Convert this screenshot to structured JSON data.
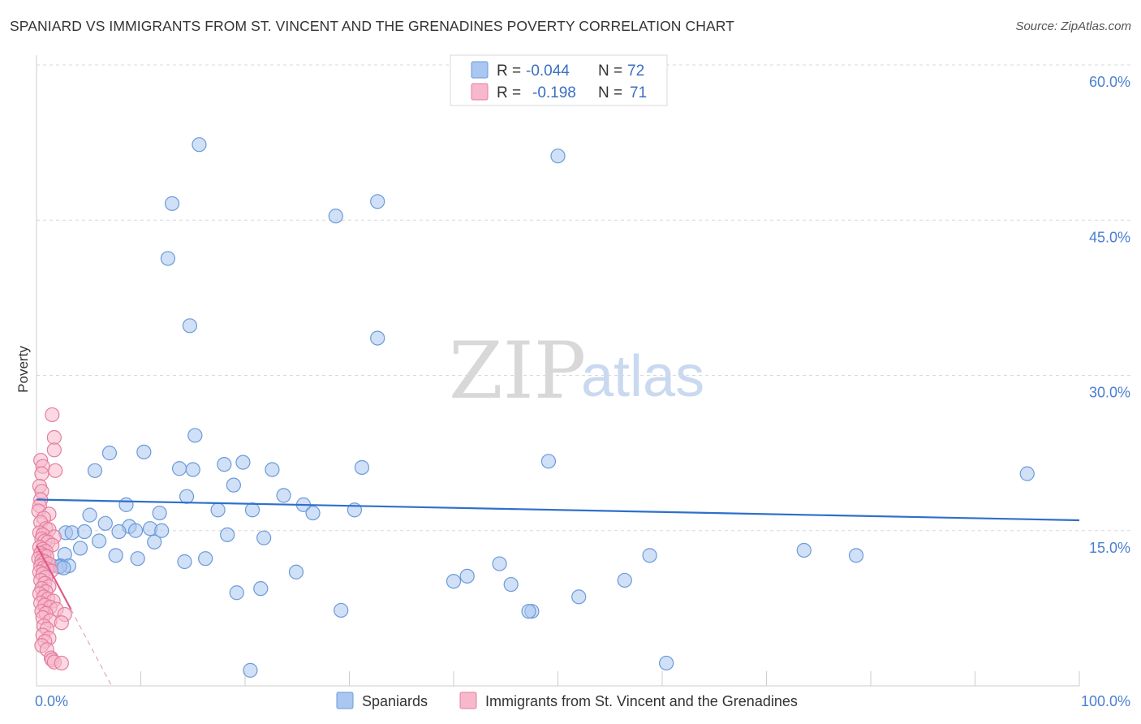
{
  "header": {
    "title": "SPANIARD VS IMMIGRANTS FROM ST. VINCENT AND THE GRENADINES POVERTY CORRELATION CHART",
    "source": "Source: ZipAtlas.com"
  },
  "watermark": {
    "zip": "ZIP",
    "atlas": "atlas"
  },
  "legend": {
    "rows": [
      {
        "r_label": "R =",
        "r_value": "-0.044",
        "n_label": "N =",
        "n_value": "72",
        "color": "#a9c7f0",
        "stroke": "#6c9ad8"
      },
      {
        "r_label": "R =",
        "r_value": "-0.198",
        "n_label": "N =",
        "n_value": "71",
        "color": "#f7b8cb",
        "stroke": "#e47ea0"
      }
    ]
  },
  "bottom_legend": {
    "items": [
      {
        "label": "Spaniards",
        "color": "#a9c7f0",
        "stroke": "#6c9ad8"
      },
      {
        "label": "Immigrants from St. Vincent and the Grenadines",
        "color": "#f7b8cb",
        "stroke": "#e47ea0"
      }
    ]
  },
  "chart_data": {
    "type": "scatter",
    "title": "SPANIARD VS IMMIGRANTS FROM ST. VINCENT AND THE GRENADINES POVERTY CORRELATION CHART",
    "xlabel": "",
    "ylabel": "Poverty",
    "xlim": [
      0,
      100
    ],
    "ylim": [
      0,
      60
    ],
    "x_tick_labels": [
      "0.0%",
      "100.0%"
    ],
    "y_ticks": [
      15,
      30,
      45,
      60
    ],
    "y_tick_labels": [
      "15.0%",
      "30.0%",
      "45.0%",
      "60.0%"
    ],
    "grid": "horizontal dashed",
    "legend_placement": "top-center",
    "series": [
      {
        "name": "Spaniards",
        "color": "#a9c7f0",
        "stroke": "#6c9ad8",
        "trend": {
          "x": [
            0,
            100
          ],
          "y": [
            18.0,
            16.0
          ],
          "color": "#2e6fcc"
        },
        "points": [
          [
            15.6,
            52.3
          ],
          [
            13.0,
            46.6
          ],
          [
            12.6,
            41.3
          ],
          [
            14.7,
            34.8
          ],
          [
            28.7,
            45.4
          ],
          [
            32.7,
            46.8
          ],
          [
            50.0,
            51.2
          ],
          [
            32.7,
            33.6
          ],
          [
            15.2,
            24.2
          ],
          [
            7.0,
            22.5
          ],
          [
            10.3,
            22.6
          ],
          [
            13.7,
            21.0
          ],
          [
            15.0,
            20.9
          ],
          [
            18.0,
            21.4
          ],
          [
            19.8,
            21.6
          ],
          [
            22.6,
            20.9
          ],
          [
            31.2,
            21.1
          ],
          [
            49.1,
            21.7
          ],
          [
            95.0,
            20.5
          ],
          [
            5.6,
            20.8
          ],
          [
            18.9,
            19.4
          ],
          [
            23.7,
            18.4
          ],
          [
            14.4,
            18.3
          ],
          [
            8.6,
            17.5
          ],
          [
            25.6,
            17.5
          ],
          [
            17.4,
            17.0
          ],
          [
            20.7,
            17.0
          ],
          [
            30.5,
            17.0
          ],
          [
            26.5,
            16.7
          ],
          [
            5.1,
            16.5
          ],
          [
            11.8,
            16.7
          ],
          [
            6.6,
            15.7
          ],
          [
            8.9,
            15.4
          ],
          [
            10.9,
            15.2
          ],
          [
            2.8,
            14.8
          ],
          [
            3.4,
            14.8
          ],
          [
            4.6,
            14.9
          ],
          [
            7.9,
            14.9
          ],
          [
            9.5,
            15.0
          ],
          [
            12.0,
            15.0
          ],
          [
            18.3,
            14.6
          ],
          [
            21.8,
            14.3
          ],
          [
            6.0,
            14.0
          ],
          [
            11.3,
            13.9
          ],
          [
            4.2,
            13.3
          ],
          [
            2.7,
            12.7
          ],
          [
            7.6,
            12.6
          ],
          [
            9.7,
            12.3
          ],
          [
            14.2,
            12.0
          ],
          [
            16.2,
            12.3
          ],
          [
            1.5,
            11.6
          ],
          [
            2.3,
            11.6
          ],
          [
            3.1,
            11.6
          ],
          [
            44.4,
            11.8
          ],
          [
            73.6,
            13.1
          ],
          [
            78.6,
            12.6
          ],
          [
            58.8,
            12.6
          ],
          [
            24.9,
            11.0
          ],
          [
            41.3,
            10.6
          ],
          [
            40.0,
            10.1
          ],
          [
            45.5,
            9.8
          ],
          [
            56.4,
            10.2
          ],
          [
            19.2,
            9.0
          ],
          [
            21.5,
            9.4
          ],
          [
            52.0,
            8.6
          ],
          [
            29.2,
            7.3
          ],
          [
            47.5,
            7.2
          ],
          [
            47.2,
            7.2
          ],
          [
            20.5,
            1.5
          ],
          [
            60.4,
            2.2
          ],
          [
            2.2,
            11.5
          ],
          [
            2.6,
            11.4
          ]
        ]
      },
      {
        "name": "Immigrants from St. Vincent and the Grenadines",
        "color": "#f7b8cb",
        "stroke": "#e47ea0",
        "trend": {
          "x": [
            0,
            3.3
          ],
          "y": [
            13.6,
            7.4
          ],
          "color": "#e05a8a",
          "dashed_extension": {
            "x": [
              3.3,
              7.2
            ],
            "y": [
              7.4,
              0.0
            ]
          }
        },
        "points": [
          [
            1.5,
            26.2
          ],
          [
            1.7,
            24.0
          ],
          [
            1.7,
            22.8
          ],
          [
            0.4,
            21.8
          ],
          [
            0.6,
            21.2
          ],
          [
            1.8,
            20.8
          ],
          [
            0.5,
            20.5
          ],
          [
            0.3,
            19.3
          ],
          [
            0.5,
            18.8
          ],
          [
            0.4,
            18.0
          ],
          [
            0.3,
            17.4
          ],
          [
            0.2,
            16.9
          ],
          [
            1.2,
            16.6
          ],
          [
            0.7,
            16.2
          ],
          [
            0.4,
            15.8
          ],
          [
            0.9,
            15.2
          ],
          [
            1.2,
            15.1
          ],
          [
            0.3,
            14.8
          ],
          [
            0.6,
            14.6
          ],
          [
            1.7,
            14.4
          ],
          [
            0.5,
            14.2
          ],
          [
            0.8,
            14.0
          ],
          [
            1.1,
            13.9
          ],
          [
            1.5,
            13.6
          ],
          [
            0.3,
            13.4
          ],
          [
            0.6,
            13.2
          ],
          [
            0.9,
            13.0
          ],
          [
            0.4,
            12.8
          ],
          [
            0.7,
            12.6
          ],
          [
            1.0,
            12.5
          ],
          [
            0.2,
            12.3
          ],
          [
            0.5,
            12.1
          ],
          [
            0.8,
            12.0
          ],
          [
            1.2,
            11.8
          ],
          [
            0.4,
            11.6
          ],
          [
            0.7,
            11.4
          ],
          [
            1.0,
            11.3
          ],
          [
            1.4,
            11.1
          ],
          [
            0.3,
            11.0
          ],
          [
            0.6,
            10.8
          ],
          [
            0.9,
            10.5
          ],
          [
            0.4,
            10.2
          ],
          [
            0.8,
            9.9
          ],
          [
            1.2,
            9.6
          ],
          [
            0.5,
            9.4
          ],
          [
            0.9,
            9.1
          ],
          [
            0.3,
            8.9
          ],
          [
            0.7,
            8.6
          ],
          [
            1.1,
            8.4
          ],
          [
            1.6,
            8.2
          ],
          [
            0.4,
            8.0
          ],
          [
            0.8,
            7.8
          ],
          [
            1.3,
            7.6
          ],
          [
            1.9,
            7.4
          ],
          [
            0.5,
            7.2
          ],
          [
            0.9,
            7.0
          ],
          [
            2.7,
            6.9
          ],
          [
            0.6,
            6.6
          ],
          [
            1.3,
            6.3
          ],
          [
            2.4,
            6.1
          ],
          [
            0.7,
            5.8
          ],
          [
            1.0,
            5.5
          ],
          [
            0.6,
            4.9
          ],
          [
            1.2,
            4.6
          ],
          [
            0.8,
            4.3
          ],
          [
            0.5,
            3.9
          ],
          [
            1.0,
            3.5
          ],
          [
            1.4,
            2.7
          ],
          [
            1.5,
            2.5
          ],
          [
            1.7,
            2.3
          ],
          [
            2.4,
            2.2
          ]
        ]
      }
    ]
  }
}
